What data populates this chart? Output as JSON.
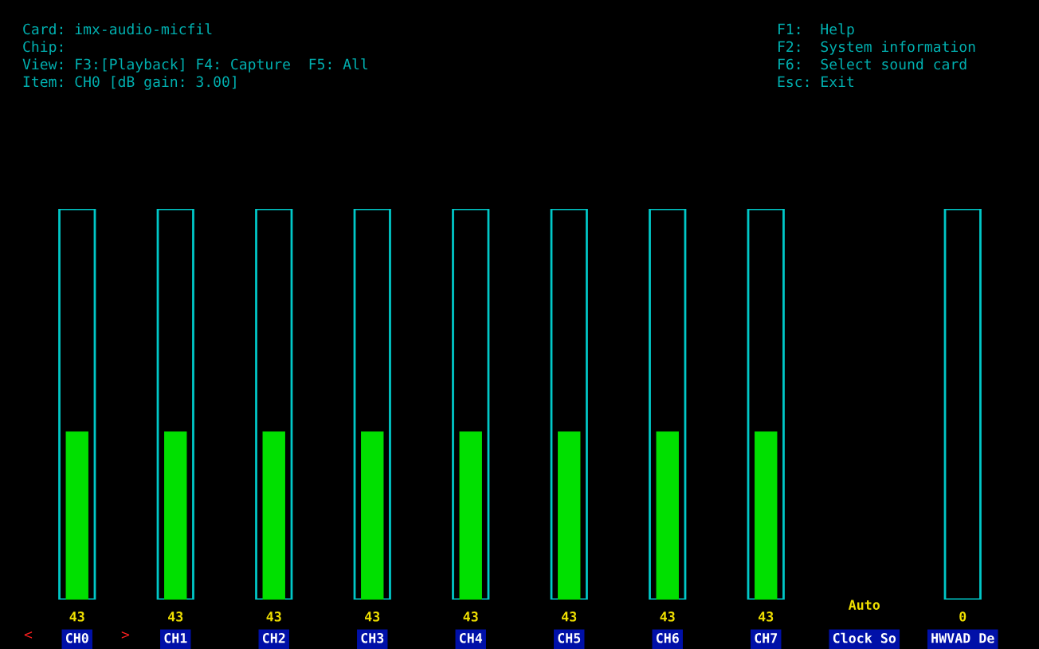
{
  "chart_data": {
    "type": "bar",
    "categories": [
      "CH0",
      "CH1",
      "CH2",
      "CH3",
      "CH4",
      "CH5",
      "CH6",
      "CH7",
      "Clock So",
      "HWVAD De"
    ],
    "series": [
      {
        "color": "#00c8c8",
        "values": [
          100,
          100,
          100,
          100,
          100,
          100,
          100,
          100,
          null,
          100
        ]
      },
      {
        "color": "#00e000",
        "values": [
          43,
          43,
          43,
          43,
          43,
          43,
          43,
          43,
          null,
          0
        ],
        "value_labels": [
          "43",
          "43",
          "43",
          "43",
          "43",
          "43",
          "43",
          "43",
          "Auto",
          "0"
        ]
      }
    ],
    "ylim": [
      0,
      100
    ],
    "tick_labels": "x",
    "grid": false,
    "legend": false,
    "annotations": [
      "Card: imx-audio-micfil",
      "Chip:",
      "View: F3:[Playback] F4: Capture  F5: All",
      "Item: CH0 [dB gain: 3.00]",
      "F1:  Help",
      "F2:  System information",
      "F6:  Select sound card",
      "Esc: Exit",
      "<",
      ">"
    ]
  }
}
